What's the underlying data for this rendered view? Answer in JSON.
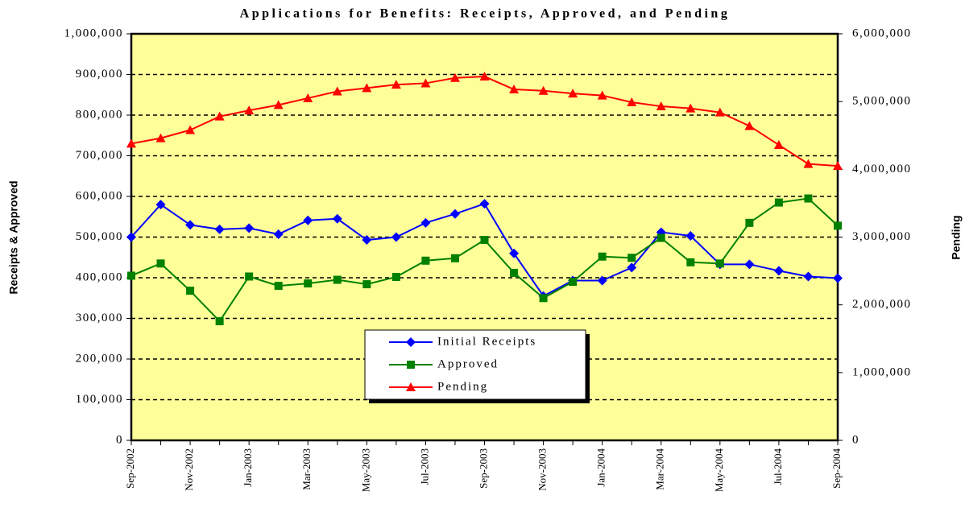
{
  "chart_data": {
    "type": "line",
    "title": "Applications for Benefits: Receipts, Approved, and Pending",
    "ylabel": "Receipts & Approved",
    "y2label": "Pending",
    "categories": [
      "Sep-2002",
      null,
      "Nov-2002",
      null,
      "Jan-2003",
      null,
      "Mar-2003",
      null,
      "May-2003",
      null,
      "Jul-2003",
      null,
      "Sep-2003",
      null,
      "Nov-2003",
      null,
      "Jan-2004",
      null,
      "Mar-2004",
      null,
      "May-2004",
      null,
      "Jul-2004",
      null,
      "Sep-2004"
    ],
    "series": [
      {
        "name": "Initial Receipts",
        "color": "#0000ff",
        "marker": "diamond",
        "axis": "y",
        "values": [
          500000,
          580000,
          530000,
          519000,
          522000,
          507000,
          541000,
          545000,
          493000,
          500000,
          535000,
          557000,
          582000,
          460000,
          355000,
          393000,
          393000,
          425000,
          512000,
          503000,
          433000,
          433000,
          417000,
          403000,
          399000
        ]
      },
      {
        "name": "Approved",
        "color": "#008000",
        "marker": "square",
        "axis": "y",
        "values": [
          405000,
          435000,
          368000,
          293000,
          403000,
          380000,
          386000,
          395000,
          384000,
          402000,
          442000,
          448000,
          493000,
          412000,
          350000,
          390000,
          452000,
          449000,
          498000,
          438000,
          435000,
          535000,
          585000,
          595000,
          528000
        ]
      },
      {
        "name": "Pending",
        "color": "#ff0000",
        "marker": "triangle",
        "axis": "y2",
        "values": [
          4380000,
          4460000,
          4580000,
          4780000,
          4870000,
          4950000,
          5050000,
          5150000,
          5200000,
          5250000,
          5270000,
          5350000,
          5370000,
          5180000,
          5160000,
          5120000,
          5090000,
          4990000,
          4930000,
          4900000,
          4840000,
          4640000,
          4360000,
          4080000,
          4050000
        ]
      }
    ],
    "ylim": [
      0,
      1000000
    ],
    "yticks": [
      0,
      {
        "value": 100000,
        "label": "100,000"
      },
      {
        "value": 200000,
        "label": "200,000"
      },
      {
        "value": 300000,
        "label": "300,000"
      },
      {
        "value": 400000,
        "label": "400,000"
      },
      {
        "value": 500000,
        "label": "500,000"
      },
      {
        "value": 600000,
        "label": "600,000"
      },
      {
        "value": 700000,
        "label": "700,000"
      },
      {
        "value": 800000,
        "label": "800,000"
      },
      {
        "value": 900000,
        "label": "900,000"
      },
      {
        "value": 1000000,
        "label": "1,000,000"
      }
    ],
    "y2lim": [
      0,
      6000000
    ],
    "y2ticks": [
      0,
      {
        "value": 1000000,
        "label": "1,000,000"
      },
      {
        "value": 2000000,
        "label": "2,000,000"
      },
      {
        "value": 3000000,
        "label": "3,000,000"
      },
      {
        "value": 4000000,
        "label": "4,000,000"
      },
      {
        "value": 5000000,
        "label": "5,000,000"
      },
      {
        "value": 6000000,
        "label": "6,000,000"
      }
    ],
    "grid": true,
    "plot_background": "#ffff99"
  }
}
